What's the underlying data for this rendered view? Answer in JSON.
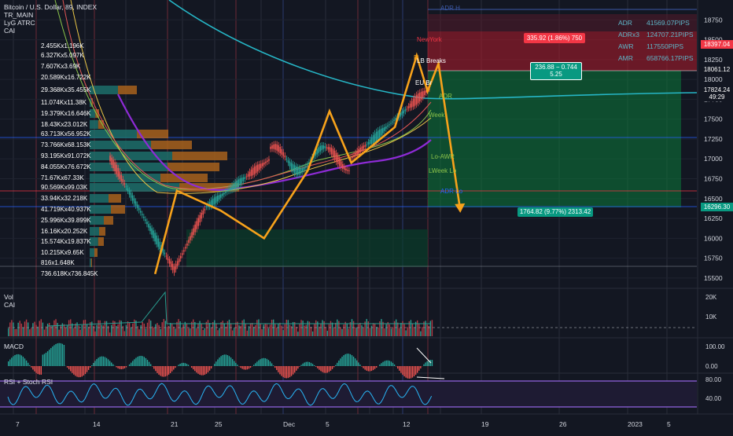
{
  "header": {
    "symbol_line": "Bitcoin / U.S. Dollar, 89, INDEX",
    "indicators": [
      "TR_MAIN",
      "LyG ATRC",
      "CAI"
    ]
  },
  "volume_profile_labels": [
    "2.455Kx1.196K",
    "6.327Kx5.097K",
    "7.607Kx3.69K",
    "20.589Kx16.722K",
    "29.368Kx35.455K",
    "11.074Kx11.38K",
    "19.379Kx16.646K",
    "18.43Kx23.012K",
    "63.713Kx56.952K",
    "73.766Kx68.153K",
    "93.195Kx91.072K",
    "84.055Kx76.672K",
    "71.67Kx67.33K",
    "90.569Kx99.03K",
    "33.94Kx32.218K",
    "41.719Kx40.937K",
    "25.996Kx39.899K",
    "16.16Kx20.252K",
    "15.574Kx19.837K",
    "10.215Kx9.65K",
    "816x1.648K",
    "736.618Kx736.845K"
  ],
  "stats": [
    {
      "key": "ADR",
      "value": "41569.07PIPS"
    },
    {
      "key": "ADRx3",
      "value": "124707.21PIPS"
    },
    {
      "key": "AWR",
      "value": "117550PIPS"
    },
    {
      "key": "AMR",
      "value": "658766.17PIPS"
    }
  ],
  "price_tags": [
    {
      "label": "18397.04",
      "color": "#f23645"
    },
    {
      "label": "18061.12",
      "color": "#131722"
    },
    {
      "label": "17824.24",
      "color": "#131722"
    },
    {
      "label": "49:29",
      "color": "#131722"
    },
    {
      "label": "16296.30",
      "color": "#089981"
    }
  ],
  "chart_labels": {
    "new_york": "NewYork",
    "fib": "Fi",
    "lb_breaks": "LB Breaks",
    "eu_br": "EU Br",
    "adr": "ADR",
    "week": "Week",
    "lo_awr": "Lo-AWR",
    "week_lo": "LWeek Lo",
    "adr_lo": "ADR Lo",
    "top_line": "ADR H"
  },
  "position_boxes": {
    "short_risk": "335.92 (1.86%) 750",
    "target_small_line1": "236.88 − 0.744",
    "target_small_line2": "5.25",
    "short_reward": "1764.82 (9.77%) 2313.42"
  },
  "sub_panes": [
    {
      "name": "Vol",
      "sub": "CAI",
      "ticks": [
        "20K",
        "10K"
      ]
    },
    {
      "name": "MACD",
      "ticks": [
        "100.00",
        "0.00"
      ]
    },
    {
      "name": "RSI + Stoch RSI",
      "ticks": [
        "80.00",
        "40.00"
      ]
    }
  ],
  "colors": {
    "background": "#131722",
    "projection": "#f7a21b",
    "ema_cyan": "#26b6c6",
    "ema_purple": "#8e2bd6",
    "green_zone": "#0b7a3b",
    "red_zone": "#b31b2b",
    "volume_profile_orange": "#a8621c",
    "volume_profile_teal": "#1d6f6a"
  },
  "chart_data": {
    "type": "line",
    "title": "Bitcoin / U.S. Dollar, 89, INDEX",
    "xlabel": "",
    "ylabel": "",
    "x_ticks": [
      "7",
      "14",
      "21",
      "25",
      "Dec",
      "5",
      "12",
      "19",
      "26",
      "2023",
      "5"
    ],
    "y_ticks": [
      15500,
      15750,
      16000,
      16250,
      16500,
      16750,
      17000,
      17250,
      17500,
      17750,
      18000,
      18250,
      18500,
      18750
    ],
    "ylim": [
      15380,
      18950
    ],
    "series": [
      {
        "name": "projection",
        "x": [
          "Nov 20",
          "Nov 22",
          "Nov 26",
          "Nov 30",
          "Dec 4",
          "Dec 6",
          "Dec 8",
          "Dec 12",
          "Dec 14",
          "Dec 15",
          "Dec 16",
          "Dec 18"
        ],
        "values": [
          15550,
          16600,
          16350,
          16000,
          16850,
          17600,
          16950,
          17400,
          18300,
          17850,
          18200,
          16350
        ]
      }
    ],
    "price_levels": [
      18397.04,
      18061.12,
      17824.24,
      16296.3
    ],
    "grid": true
  }
}
